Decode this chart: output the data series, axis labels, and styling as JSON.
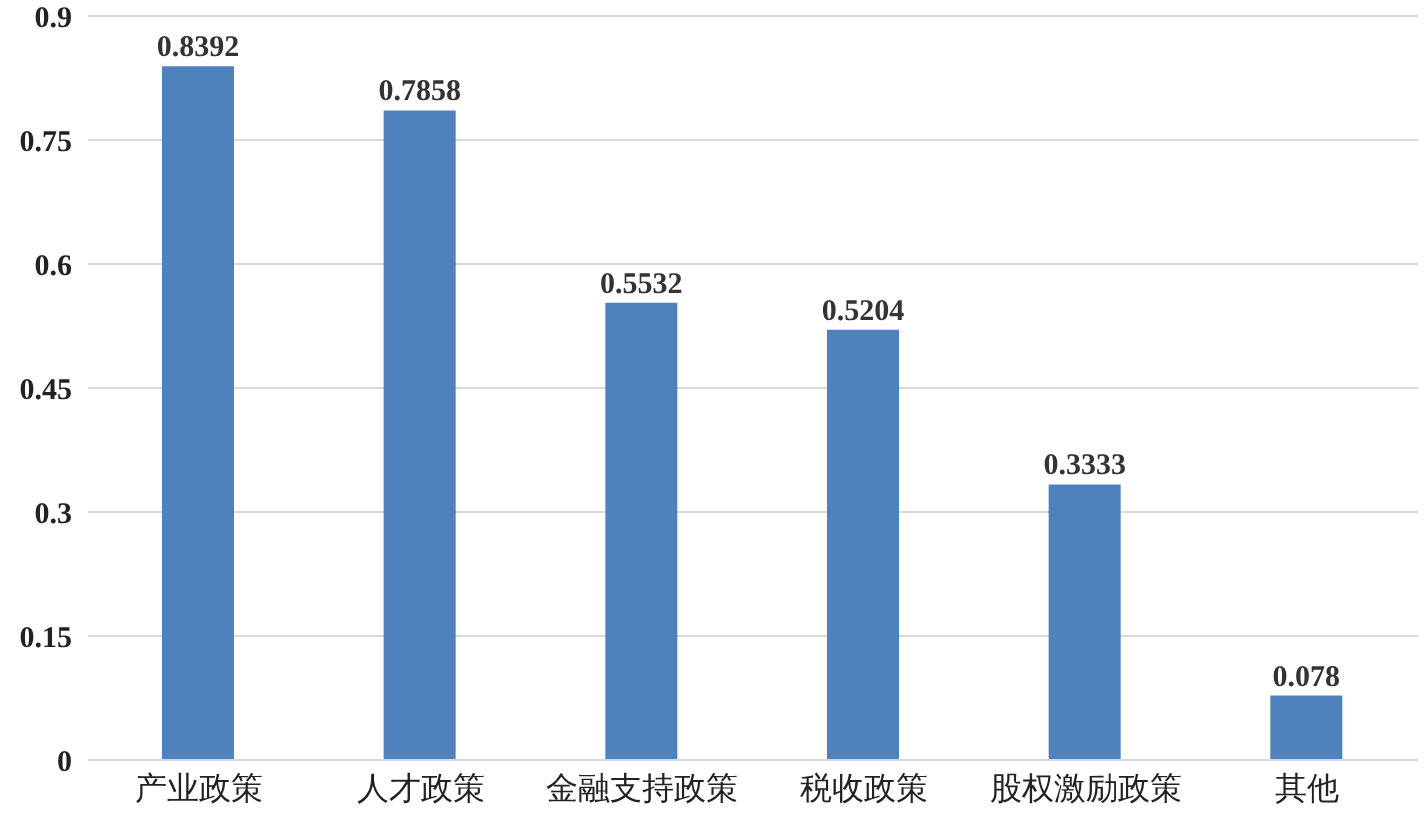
{
  "chart_data": {
    "type": "bar",
    "categories": [
      "产业政策",
      "人才政策",
      "金融支持政策",
      "税收政策",
      "股权激励政策",
      "其他"
    ],
    "values": [
      0.8392,
      0.7858,
      0.5532,
      0.5204,
      0.3333,
      0.078
    ],
    "color": "#4f81bd",
    "ylim": [
      0,
      0.9
    ],
    "yticks": [
      0,
      0.15,
      0.3,
      0.45,
      0.6,
      0.75,
      0.9
    ],
    "grid": "y",
    "data_labels": true
  }
}
